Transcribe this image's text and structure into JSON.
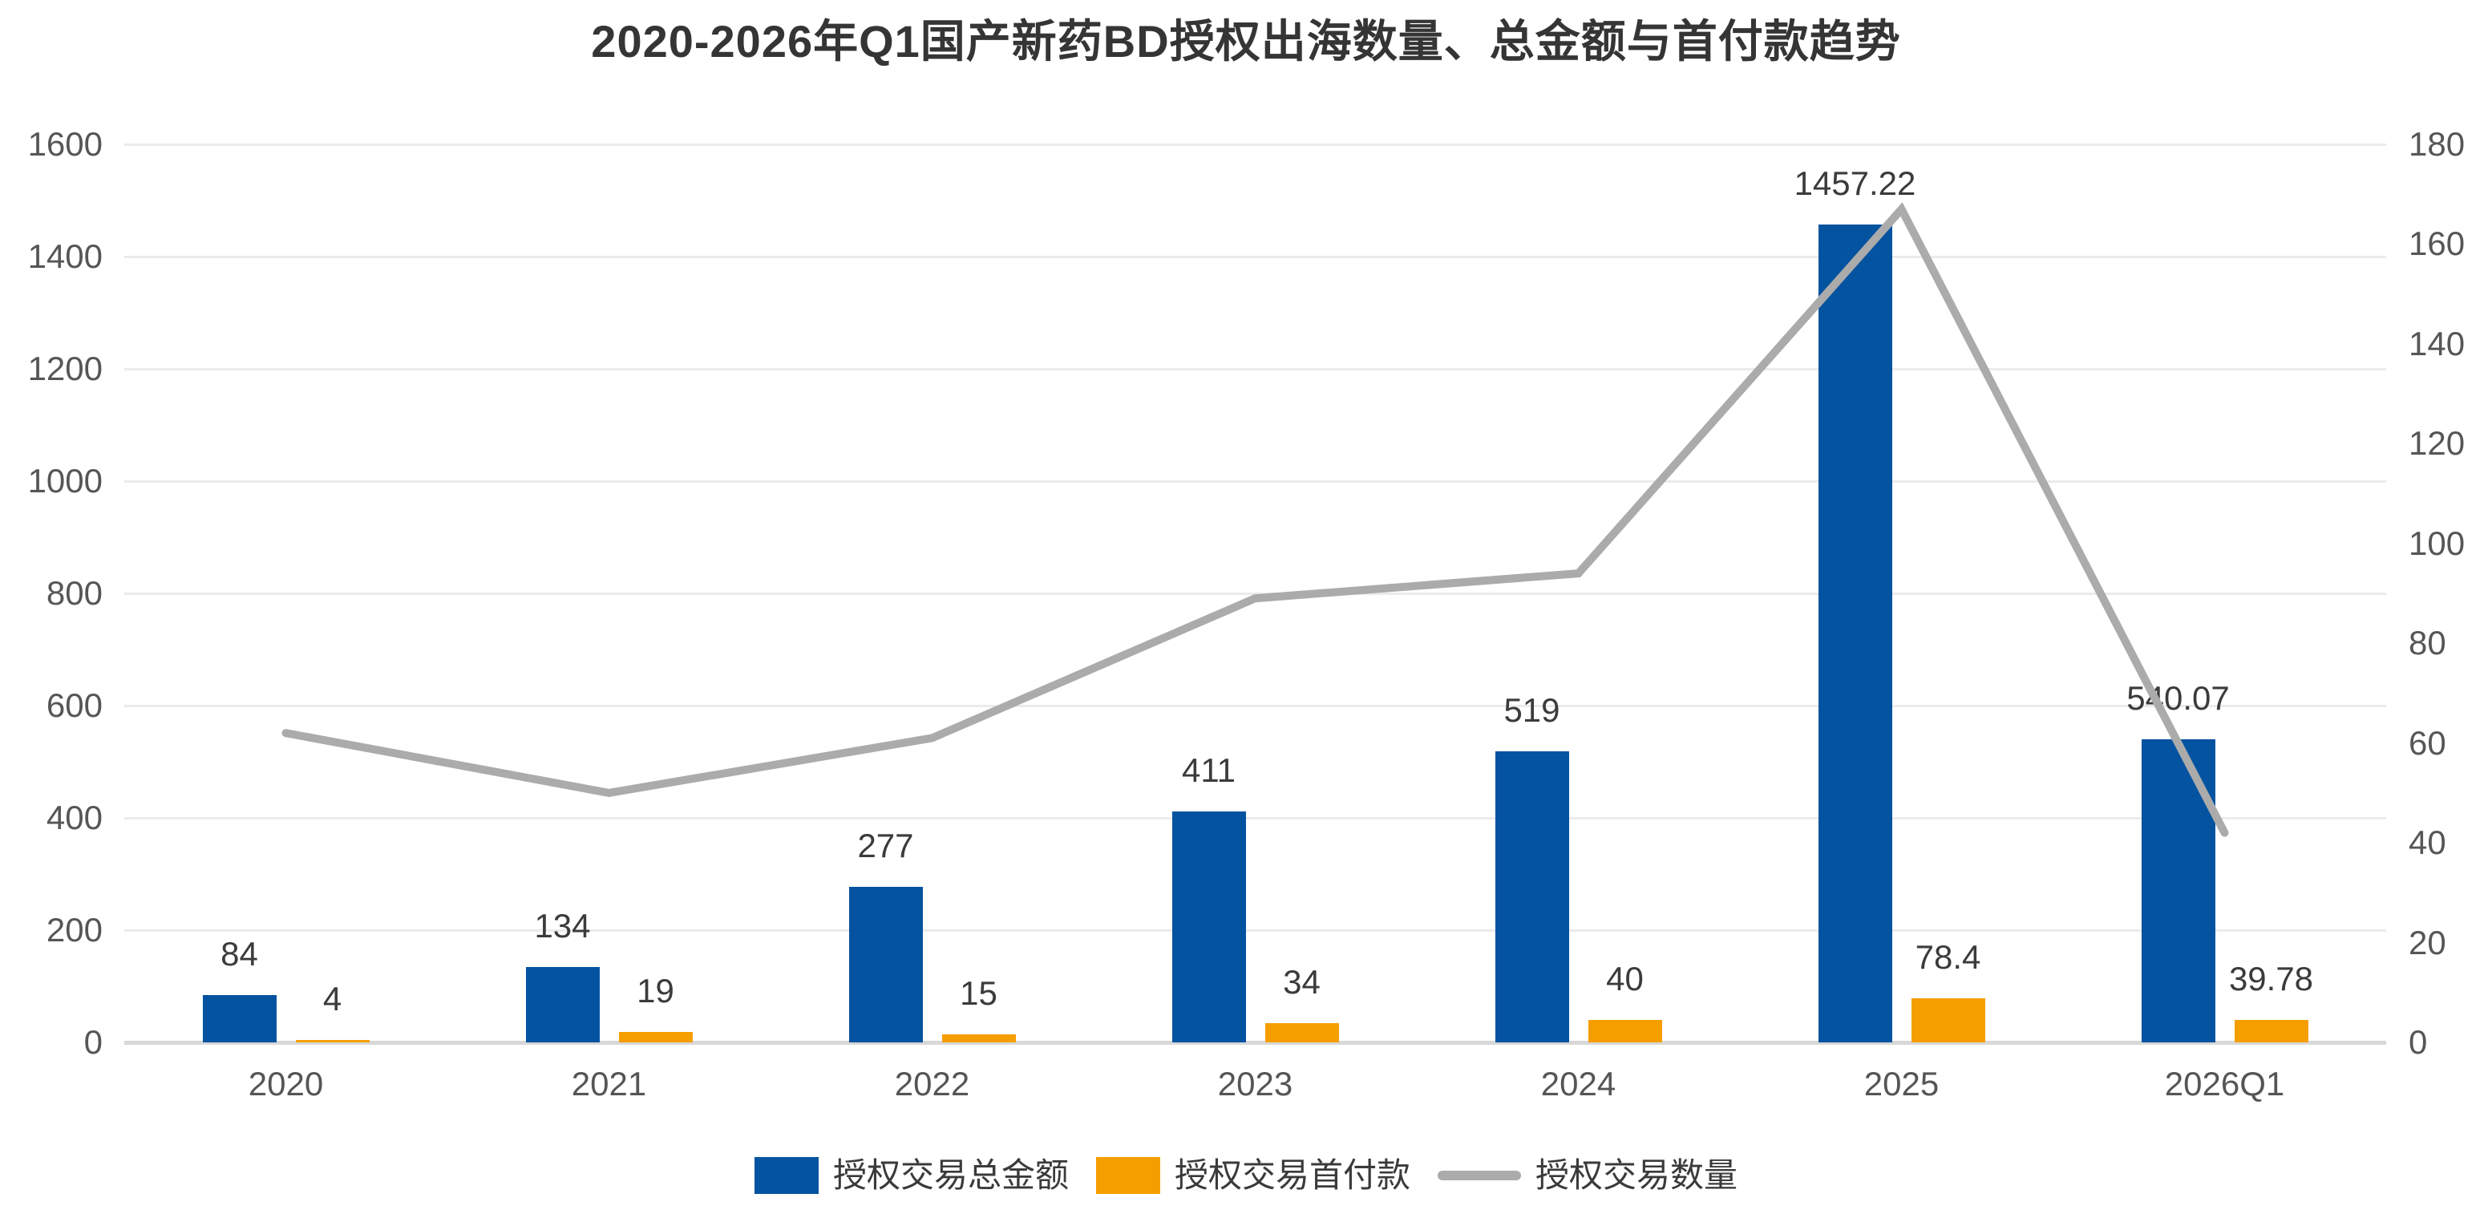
{
  "title": "2020-2026年Q1国产新药BD授权出海数量、总金额与首付款趋势",
  "chart_data": {
    "type": "combo-bar-line",
    "categories": [
      "2020",
      "2021",
      "2022",
      "2023",
      "2024",
      "2025",
      "2026Q1"
    ],
    "series": [
      {
        "name": "授权交易总金额",
        "chart": "bar",
        "axis": "left",
        "color": "#0453A0",
        "values": [
          84,
          134,
          277,
          411,
          519,
          1457.22,
          540.07
        ]
      },
      {
        "name": "授权交易首付款",
        "chart": "bar",
        "axis": "left",
        "color": "#F59E00",
        "values": [
          4,
          19,
          15,
          34,
          40,
          78.4,
          39.78
        ]
      },
      {
        "name": "授权交易数量",
        "chart": "line",
        "axis": "right",
        "color": "#ABABAB",
        "values": [
          62,
          50,
          61,
          89,
          94,
          167,
          42
        ]
      }
    ],
    "left_axis": {
      "min": 0,
      "max": 1600,
      "tick_step": 200,
      "tick_labels": [
        "0",
        "200",
        "400",
        "600",
        "800",
        "1000",
        "1200",
        "1400",
        "1600"
      ]
    },
    "right_axis": {
      "min": 0,
      "max": 180,
      "tick_step": 20,
      "tick_labels": [
        "0",
        "20",
        "40",
        "60",
        "80",
        "100",
        "120",
        "140",
        "160",
        "180"
      ]
    },
    "grid": true,
    "data_labels_on_bars": true,
    "legend_position": "bottom"
  },
  "legend": {
    "items": [
      {
        "label": "授权交易总金额",
        "shape": "rect",
        "color": "#0453A0"
      },
      {
        "label": "授权交易首付款",
        "shape": "rect",
        "color": "#F59E00"
      },
      {
        "label": "授权交易数量",
        "shape": "line",
        "color": "#ABABAB"
      }
    ]
  },
  "colors": {
    "bar_total": "#0453A0",
    "bar_upfront": "#F59E00",
    "line_count": "#ABABAB",
    "gridline": "#EBEBEB",
    "baseline": "#D8D8D8",
    "tick_text": "#565656",
    "label_text": "#3B3B3B",
    "title_text": "#353535"
  }
}
